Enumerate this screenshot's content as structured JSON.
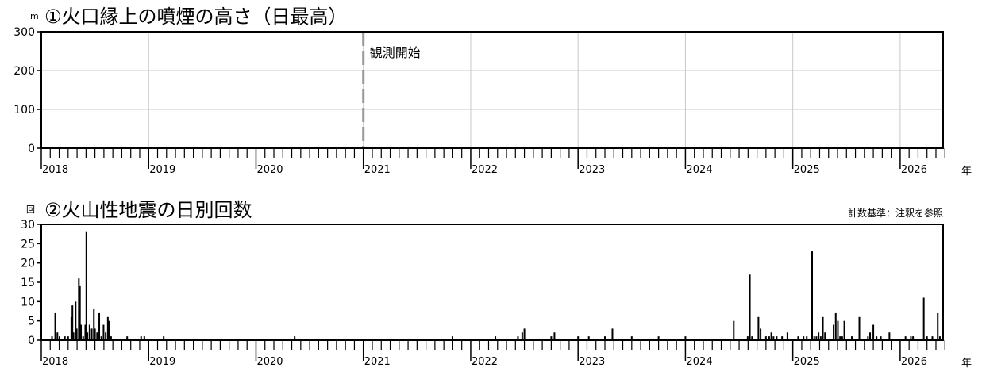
{
  "chart_data": [
    {
      "type": "bar",
      "title": "①火口縁上の噴煙の高さ（日最高）",
      "unit": "m",
      "ylim": [
        0,
        300
      ],
      "yticks": [
        "0",
        "100",
        "200",
        "300"
      ],
      "xlim": [
        2018,
        2026.4
      ],
      "xticks": [
        "2018",
        "2019",
        "2020",
        "2021",
        "2022",
        "2023",
        "2024",
        "2025",
        "2026"
      ],
      "xunit": "年",
      "grid": true,
      "annotation": {
        "x": 2021.0,
        "label": "観測開始"
      },
      "series": [
        {
          "values": []
        }
      ]
    },
    {
      "type": "bar",
      "title": "②火山性地震の日別回数",
      "unit": "回",
      "note": "計数基準：注釈を参照",
      "ylim": [
        0,
        30
      ],
      "yticks": [
        "0",
        "5",
        "10",
        "15",
        "20",
        "25",
        "30"
      ],
      "xlim": [
        2018,
        2026.4
      ],
      "xticks": [
        "2018",
        "2019",
        "2020",
        "2021",
        "2022",
        "2023",
        "2024",
        "2025",
        "2026"
      ],
      "xunit": "年",
      "grid": false,
      "series": [
        {
          "points": [
            [
              2018.1,
              1
            ],
            [
              2018.13,
              7
            ],
            [
              2018.15,
              2
            ],
            [
              2018.17,
              1
            ],
            [
              2018.22,
              1
            ],
            [
              2018.25,
              1
            ],
            [
              2018.28,
              6
            ],
            [
              2018.29,
              9
            ],
            [
              2018.3,
              2
            ],
            [
              2018.32,
              10
            ],
            [
              2018.33,
              3
            ],
            [
              2018.35,
              16
            ],
            [
              2018.36,
              14
            ],
            [
              2018.37,
              4
            ],
            [
              2018.39,
              1
            ],
            [
              2018.41,
              4
            ],
            [
              2018.42,
              28
            ],
            [
              2018.43,
              2
            ],
            [
              2018.45,
              4
            ],
            [
              2018.47,
              3
            ],
            [
              2018.49,
              8
            ],
            [
              2018.5,
              3
            ],
            [
              2018.52,
              2
            ],
            [
              2018.54,
              7
            ],
            [
              2018.56,
              1
            ],
            [
              2018.58,
              4
            ],
            [
              2018.6,
              2
            ],
            [
              2018.62,
              6
            ],
            [
              2018.63,
              5
            ],
            [
              2018.65,
              1
            ],
            [
              2018.8,
              1
            ],
            [
              2018.93,
              1
            ],
            [
              2018.96,
              1
            ],
            [
              2019.14,
              1
            ],
            [
              2020.36,
              1
            ],
            [
              2021.83,
              1
            ],
            [
              2022.23,
              1
            ],
            [
              2022.44,
              1
            ],
            [
              2022.48,
              2
            ],
            [
              2022.5,
              3
            ],
            [
              2022.75,
              1
            ],
            [
              2022.78,
              2
            ],
            [
              2023.0,
              1
            ],
            [
              2023.1,
              1
            ],
            [
              2023.25,
              1
            ],
            [
              2023.32,
              3
            ],
            [
              2023.5,
              1
            ],
            [
              2023.75,
              1
            ],
            [
              2024.0,
              1
            ],
            [
              2024.45,
              5
            ],
            [
              2024.58,
              1
            ],
            [
              2024.6,
              17
            ],
            [
              2024.62,
              1
            ],
            [
              2024.68,
              6
            ],
            [
              2024.7,
              3
            ],
            [
              2024.75,
              1
            ],
            [
              2024.78,
              1
            ],
            [
              2024.8,
              2
            ],
            [
              2024.82,
              1
            ],
            [
              2024.85,
              1
            ],
            [
              2024.9,
              1
            ],
            [
              2024.95,
              2
            ],
            [
              2025.05,
              1
            ],
            [
              2025.1,
              1
            ],
            [
              2025.13,
              1
            ],
            [
              2025.18,
              23
            ],
            [
              2025.2,
              1
            ],
            [
              2025.22,
              1
            ],
            [
              2025.24,
              2
            ],
            [
              2025.26,
              1
            ],
            [
              2025.28,
              6
            ],
            [
              2025.3,
              2
            ],
            [
              2025.38,
              4
            ],
            [
              2025.4,
              7
            ],
            [
              2025.42,
              5
            ],
            [
              2025.44,
              1
            ],
            [
              2025.46,
              1
            ],
            [
              2025.48,
              5
            ],
            [
              2025.55,
              1
            ],
            [
              2025.62,
              6
            ],
            [
              2025.7,
              1
            ],
            [
              2025.72,
              2
            ],
            [
              2025.75,
              4
            ],
            [
              2025.78,
              1
            ],
            [
              2025.82,
              1
            ],
            [
              2025.9,
              2
            ],
            [
              2026.05,
              1
            ],
            [
              2026.1,
              1
            ],
            [
              2026.12,
              1
            ],
            [
              2026.22,
              11
            ],
            [
              2026.25,
              1
            ],
            [
              2026.3,
              1
            ],
            [
              2026.35,
              7
            ],
            [
              2026.37,
              1
            ]
          ]
        }
      ]
    }
  ]
}
